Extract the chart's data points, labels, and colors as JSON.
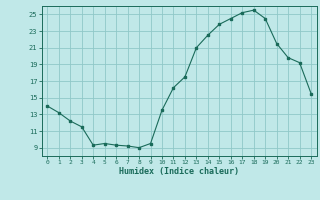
{
  "x": [
    0,
    1,
    2,
    3,
    4,
    5,
    6,
    7,
    8,
    9,
    10,
    11,
    12,
    13,
    14,
    15,
    16,
    17,
    18,
    19,
    20,
    21,
    22,
    23
  ],
  "y": [
    14.0,
    13.2,
    12.2,
    11.5,
    9.3,
    9.5,
    9.3,
    9.2,
    9.0,
    9.5,
    13.5,
    16.2,
    17.5,
    21.0,
    22.5,
    23.8,
    24.5,
    25.2,
    25.5,
    24.5,
    21.5,
    19.8,
    19.2,
    15.5
  ],
  "line_color": "#1a6b5a",
  "marker_color": "#1a6b5a",
  "bg_color": "#c0e8e8",
  "grid_color": "#90c8c8",
  "xlabel": "Humidex (Indice chaleur)",
  "xlim": [
    -0.5,
    23.5
  ],
  "ylim": [
    8.0,
    26.0
  ],
  "yticks": [
    9,
    11,
    13,
    15,
    17,
    19,
    21,
    23,
    25
  ],
  "xticks": [
    0,
    1,
    2,
    3,
    4,
    5,
    6,
    7,
    8,
    9,
    10,
    11,
    12,
    13,
    14,
    15,
    16,
    17,
    18,
    19,
    20,
    21,
    22,
    23
  ]
}
